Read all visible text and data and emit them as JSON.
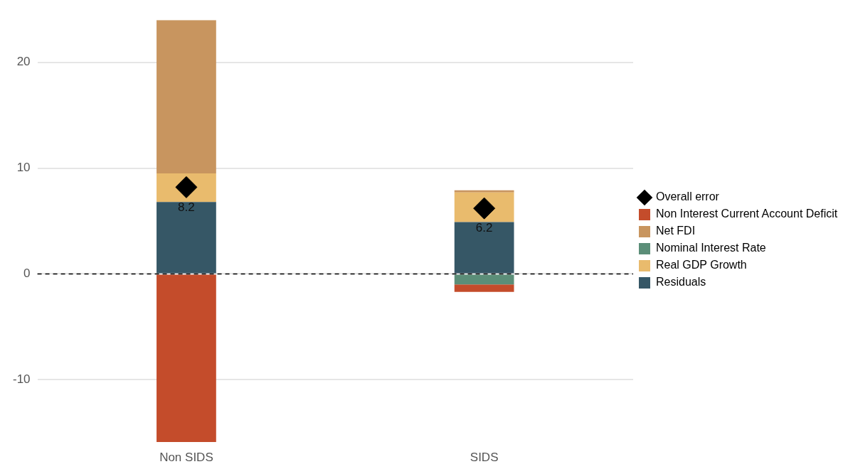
{
  "chart_data": {
    "type": "bar",
    "stacked": true,
    "categories": [
      "Non SIDS",
      "SIDS"
    ],
    "series": [
      {
        "name": "Residuals",
        "color": "#365766",
        "values": [
          6.8,
          4.9
        ]
      },
      {
        "name": "Real GDP Growth",
        "color": "#e9bb6d",
        "values": [
          2.7,
          2.8
        ]
      },
      {
        "name": "Nominal Interest Rate",
        "color": "#5b8e78",
        "values": [
          null,
          -1.0
        ]
      },
      {
        "name": "Net FDI",
        "color": "#c8955f",
        "values": [
          14.5,
          0.2
        ]
      },
      {
        "name": "Non Interest Current Account Deficit",
        "color": "#c44c2b",
        "values": [
          -15.9,
          -0.7
        ]
      },
      {
        "name": "Overall error",
        "type": "scatter",
        "color": "#000000",
        "marker": "diamond",
        "x": [
          "Non SIDS",
          "SIDS"
        ],
        "values": [
          8.2,
          6.2
        ],
        "value_labels": [
          "8.2",
          "6.2"
        ]
      }
    ],
    "ylim": [
      -16,
      24
    ],
    "yticks": [
      -10,
      0,
      10,
      20
    ],
    "grid": "y",
    "legend": "right",
    "ref_lines": [
      {
        "axis": "y",
        "value": 0,
        "color": "#000000",
        "line_style": "dashed"
      }
    ]
  }
}
